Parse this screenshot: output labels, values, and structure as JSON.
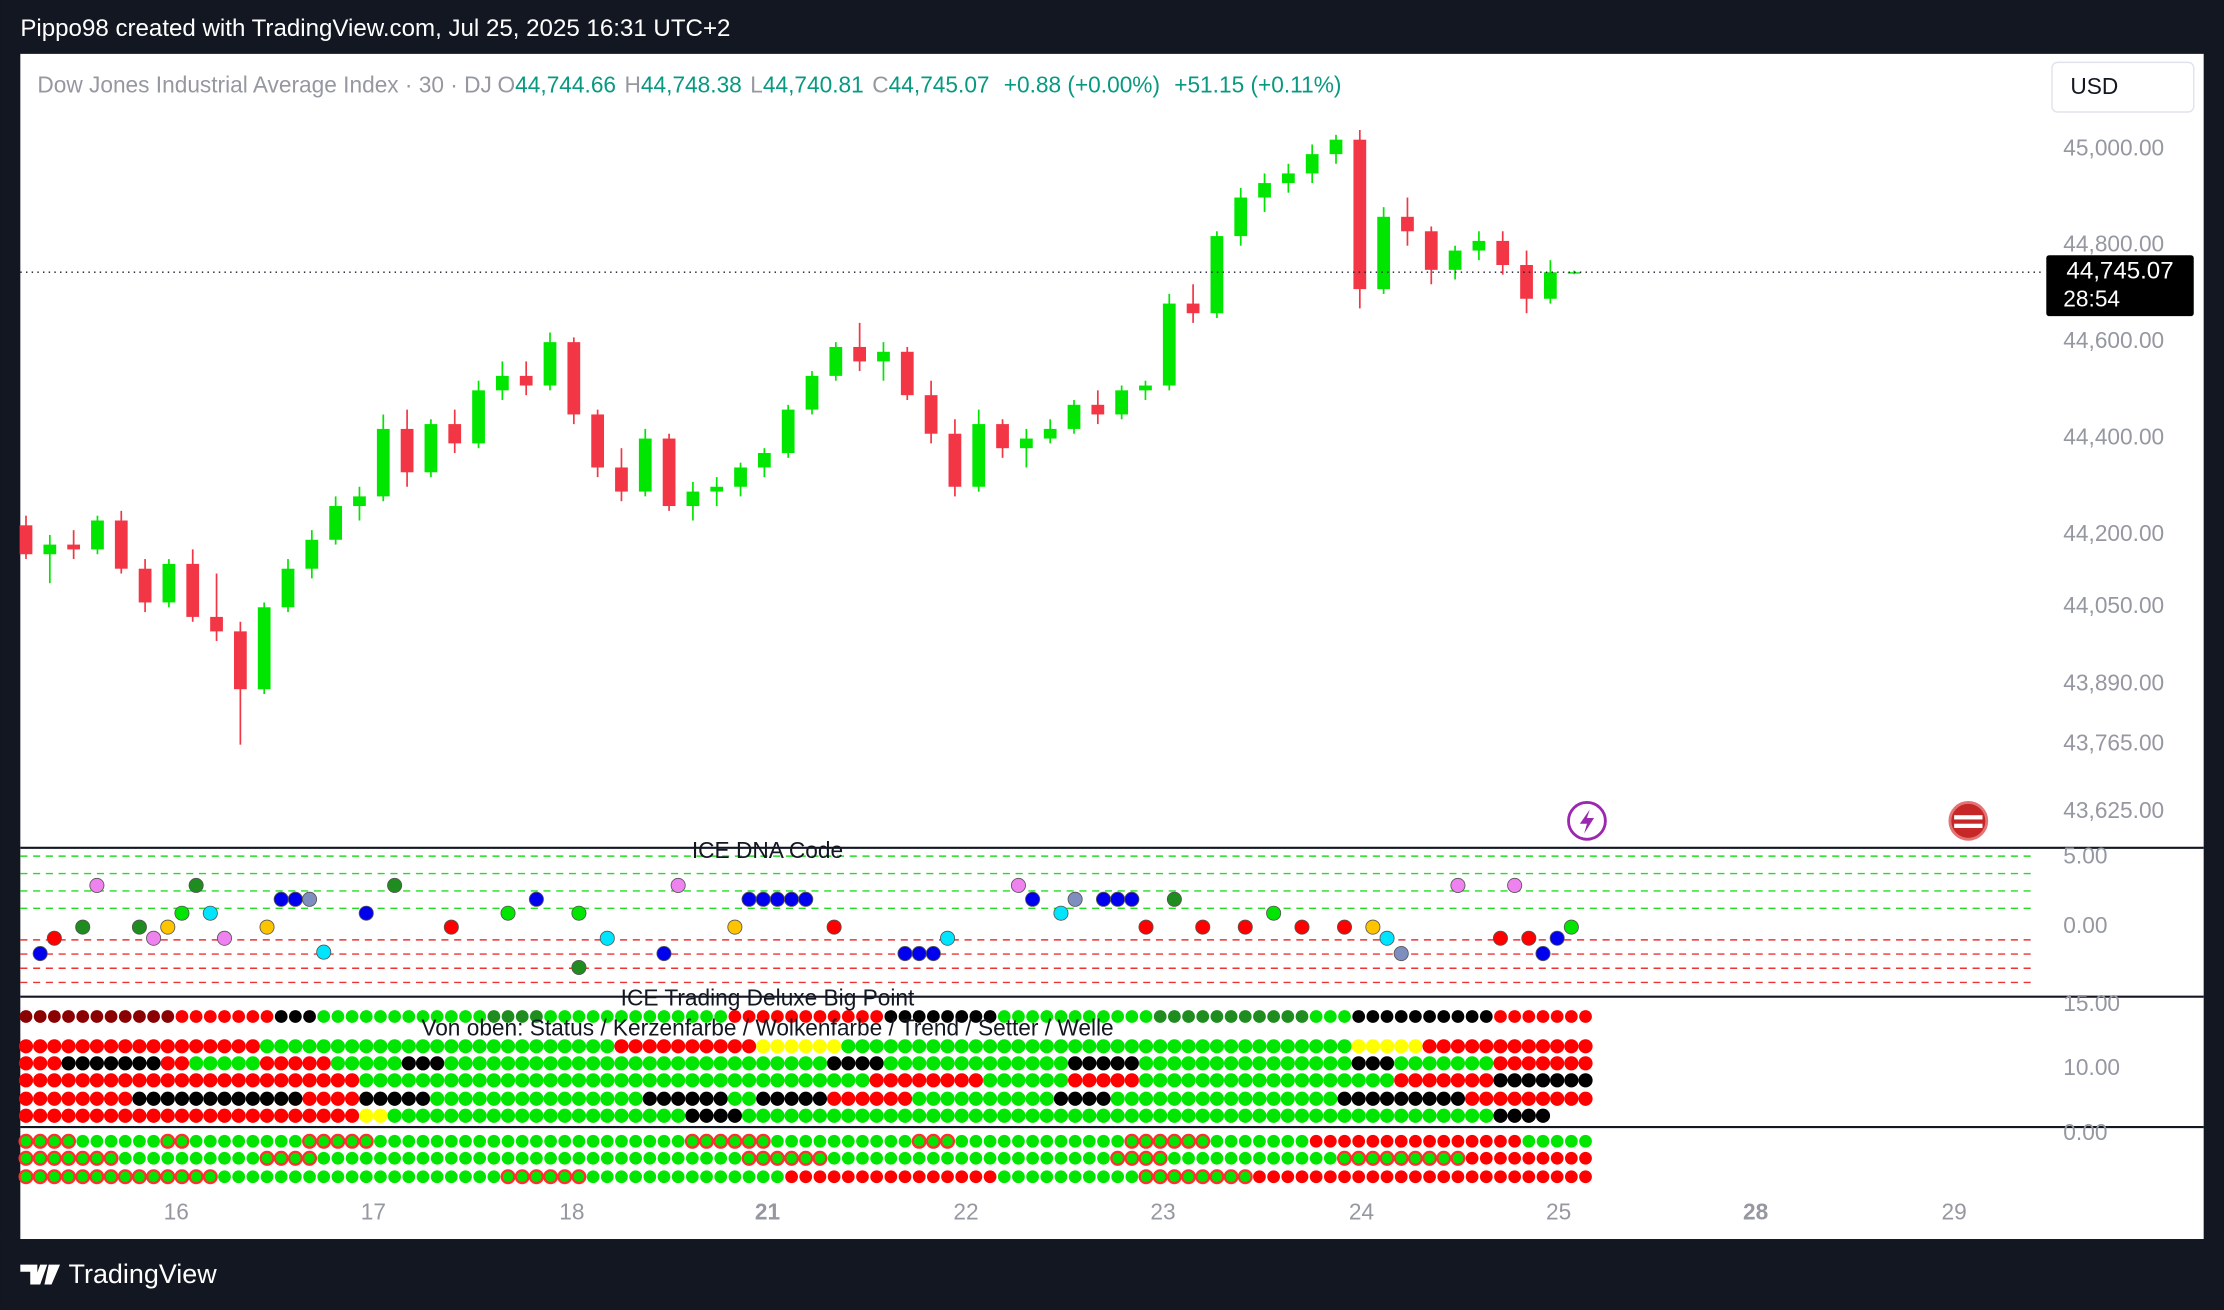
{
  "watermark": "Pippo98 created with TradingView.com, Jul 25, 2025 16:31 UTC+2",
  "footer_brand": "TradingView",
  "header": {
    "symbol": "Dow Jones Industrial Average Index · 30 · DJ",
    "ohlc": [
      {
        "key": "O",
        "value": "44,744.66"
      },
      {
        "key": "H",
        "value": "44,748.38"
      },
      {
        "key": "L",
        "value": "44,740.81"
      },
      {
        "key": "C",
        "value": "44,745.07"
      }
    ],
    "change": "+0.88 (+0.00%)",
    "change_ext": "+51.15 (+0.11%)",
    "currency": "USD"
  },
  "chart_data": {
    "type": "candlestick",
    "up_color": "#00e600",
    "down_color": "#f23645",
    "ylim": [
      43551,
      45198
    ],
    "yticks": [
      {
        "value": 45000,
        "label": "45,000.00"
      },
      {
        "value": 44800,
        "label": "44,800.00"
      },
      {
        "value": 44600,
        "label": "44,600.00"
      },
      {
        "value": 44400,
        "label": "44,400.00"
      },
      {
        "value": 44200,
        "label": "44,200.00"
      },
      {
        "value": 44050,
        "label": "44,050.00"
      },
      {
        "value": 43890,
        "label": "43,890.00"
      },
      {
        "value": 43765,
        "label": "43,765.00"
      },
      {
        "value": 43625,
        "label": "43,625.00"
      }
    ],
    "x_labels": [
      "16",
      "17",
      "18",
      "21",
      "22",
      "23",
      "24",
      "25",
      "28",
      "29"
    ],
    "last_price": 44745.07,
    "last_price_label": "44,745.07",
    "countdown": "28:54",
    "candles": [
      [
        44220,
        44240,
        44150,
        44160
      ],
      [
        44160,
        44200,
        44100,
        44180
      ],
      [
        44180,
        44210,
        44150,
        44170
      ],
      [
        44170,
        44240,
        44160,
        44230
      ],
      [
        44230,
        44250,
        44120,
        44130
      ],
      [
        44130,
        44150,
        44040,
        44060
      ],
      [
        44060,
        44150,
        44050,
        44140
      ],
      [
        44140,
        44170,
        44020,
        44030
      ],
      [
        44030,
        44120,
        43980,
        44000
      ],
      [
        44000,
        44020,
        43765,
        43880
      ],
      [
        43880,
        44060,
        43870,
        44050
      ],
      [
        44050,
        44150,
        44040,
        44130
      ],
      [
        44130,
        44210,
        44110,
        44190
      ],
      [
        44190,
        44280,
        44180,
        44260
      ],
      [
        44260,
        44300,
        44230,
        44280
      ],
      [
        44280,
        44450,
        44270,
        44420
      ],
      [
        44420,
        44460,
        44300,
        44330
      ],
      [
        44330,
        44440,
        44320,
        44430
      ],
      [
        44430,
        44460,
        44370,
        44390
      ],
      [
        44390,
        44520,
        44380,
        44500
      ],
      [
        44500,
        44560,
        44480,
        44530
      ],
      [
        44530,
        44560,
        44490,
        44510
      ],
      [
        44510,
        44620,
        44500,
        44600
      ],
      [
        44600,
        44610,
        44430,
        44450
      ],
      [
        44450,
        44460,
        44320,
        44340
      ],
      [
        44340,
        44380,
        44270,
        44290
      ],
      [
        44290,
        44420,
        44280,
        44400
      ],
      [
        44400,
        44410,
        44250,
        44260
      ],
      [
        44260,
        44310,
        44230,
        44290
      ],
      [
        44290,
        44320,
        44260,
        44300
      ],
      [
        44300,
        44350,
        44280,
        44340
      ],
      [
        44340,
        44380,
        44320,
        44370
      ],
      [
        44370,
        44470,
        44360,
        44460
      ],
      [
        44460,
        44540,
        44450,
        44530
      ],
      [
        44530,
        44600,
        44520,
        44590
      ],
      [
        44590,
        44640,
        44540,
        44560
      ],
      [
        44560,
        44600,
        44520,
        44580
      ],
      [
        44580,
        44590,
        44480,
        44490
      ],
      [
        44490,
        44520,
        44390,
        44410
      ],
      [
        44410,
        44440,
        44280,
        44300
      ],
      [
        44300,
        44460,
        44290,
        44430
      ],
      [
        44430,
        44440,
        44360,
        44380
      ],
      [
        44380,
        44420,
        44340,
        44400
      ],
      [
        44400,
        44440,
        44390,
        44420
      ],
      [
        44420,
        44480,
        44410,
        44470
      ],
      [
        44470,
        44500,
        44430,
        44450
      ],
      [
        44450,
        44510,
        44440,
        44500
      ],
      [
        44500,
        44520,
        44480,
        44510
      ],
      [
        44510,
        44700,
        44500,
        44680
      ],
      [
        44680,
        44720,
        44640,
        44660
      ],
      [
        44660,
        44830,
        44650,
        44820
      ],
      [
        44820,
        44920,
        44800,
        44900
      ],
      [
        44900,
        44950,
        44870,
        44930
      ],
      [
        44930,
        44970,
        44910,
        44950
      ],
      [
        44950,
        45010,
        44930,
        44990
      ],
      [
        44990,
        45030,
        44970,
        45020
      ],
      [
        45020,
        45040,
        44670,
        44710
      ],
      [
        44710,
        44880,
        44700,
        44860
      ],
      [
        44860,
        44900,
        44800,
        44830
      ],
      [
        44830,
        44840,
        44720,
        44750
      ],
      [
        44750,
        44800,
        44730,
        44790
      ],
      [
        44790,
        44830,
        44770,
        44810
      ],
      [
        44810,
        44830,
        44740,
        44760
      ],
      [
        44760,
        44790,
        44660,
        44690
      ],
      [
        44690,
        44770,
        44680,
        44745
      ],
      [
        44744.66,
        44748.38,
        44740.81,
        44745.07
      ]
    ]
  },
  "indicators": {
    "palette": {
      "M": "#8b0000",
      "R": "#ff0000",
      "K": "#000000",
      "G": "#00e600",
      "D": "#1e8c1e",
      "Y": "#ffff00",
      "H": "#00e600",
      "B": "#0000ee",
      "C": "#00e5ff",
      "P": "#ee82ee",
      "O": "#ffc400",
      "S": "#7e8fbf"
    },
    "ringed": "H",
    "ring_color": "#ff3030",
    "dna": {
      "title": "ICE DNA Code",
      "ylim": [
        -5,
        5.7
      ],
      "yticks": [
        {
          "value": 5,
          "label": "5.00"
        },
        {
          "value": 0,
          "label": "0.00"
        }
      ],
      "dots": [
        [
          1,
          -1.9,
          "B"
        ],
        [
          2,
          -0.8,
          "R"
        ],
        [
          4,
          0,
          "D"
        ],
        [
          5,
          3,
          "P"
        ],
        [
          8,
          0,
          "D"
        ],
        [
          9,
          -0.8,
          "P"
        ],
        [
          10,
          0,
          "O"
        ],
        [
          11,
          1,
          "G"
        ],
        [
          12,
          3,
          "D"
        ],
        [
          13,
          1,
          "C"
        ],
        [
          14,
          -0.8,
          "P"
        ],
        [
          17,
          0,
          "O"
        ],
        [
          18,
          2,
          "B"
        ],
        [
          19,
          2,
          "B"
        ],
        [
          20,
          2,
          "S"
        ],
        [
          21,
          -1.8,
          "C"
        ],
        [
          24,
          1,
          "B"
        ],
        [
          26,
          3,
          "D"
        ],
        [
          30,
          0,
          "R"
        ],
        [
          34,
          1,
          "G"
        ],
        [
          36,
          2,
          "B"
        ],
        [
          39,
          1,
          "G"
        ],
        [
          39,
          -2.9,
          "D"
        ],
        [
          41,
          -0.8,
          "C"
        ],
        [
          45,
          -1.9,
          "B"
        ],
        [
          46,
          3,
          "P"
        ],
        [
          50,
          0,
          "O"
        ],
        [
          51,
          2,
          "B"
        ],
        [
          52,
          2,
          "B"
        ],
        [
          53,
          2,
          "B"
        ],
        [
          54,
          2,
          "B"
        ],
        [
          55,
          2,
          "B"
        ],
        [
          57,
          0,
          "R"
        ],
        [
          62,
          -1.9,
          "B"
        ],
        [
          63,
          -1.9,
          "B"
        ],
        [
          64,
          -1.9,
          "B"
        ],
        [
          65,
          -0.8,
          "C"
        ],
        [
          70,
          3,
          "P"
        ],
        [
          71,
          2,
          "B"
        ],
        [
          73,
          1,
          "C"
        ],
        [
          74,
          2,
          "S"
        ],
        [
          76,
          2,
          "B"
        ],
        [
          77,
          2,
          "B"
        ],
        [
          78,
          2,
          "B"
        ],
        [
          79,
          0,
          "R"
        ],
        [
          81,
          2,
          "D"
        ],
        [
          83,
          0,
          "R"
        ],
        [
          86,
          0,
          "R"
        ],
        [
          88,
          1,
          "G"
        ],
        [
          90,
          0,
          "R"
        ],
        [
          93,
          0,
          "R"
        ],
        [
          95,
          0,
          "O"
        ],
        [
          96,
          -0.8,
          "C"
        ],
        [
          97,
          -1.9,
          "S"
        ],
        [
          101,
          3,
          "P"
        ],
        [
          104,
          -0.8,
          "R"
        ],
        [
          105,
          3,
          "P"
        ],
        [
          106,
          -0.8,
          "R"
        ],
        [
          107,
          -1.9,
          "B"
        ],
        [
          108,
          -0.8,
          "B"
        ],
        [
          109,
          0,
          "G"
        ]
      ]
    },
    "big_point": {
      "title": "ICE Trading Deluxe Big Point",
      "subtitle": "Von oben: Status / Kerzenfarbe / Wolkenfarbe / Trend / Setter / Welle",
      "ylim": [
        5.44,
        15.67
      ],
      "yticks": [
        {
          "value": 15,
          "label": "15.00"
        },
        {
          "value": 10,
          "label": "10.00"
        }
      ],
      "rows": [
        "MMMMMMMMMMMRRRRRRRKKKGGGGGGGGGGGGDDDDGGGGGGGGGGGGGRRRRRRRRRRRKKKKKKKKGGGGGGGGGGGDDDDDDDDDDDGGGKKKKKKKKKKRRRRRRR",
        "RRRRRRRRRRRRRRRRRGGGGGGGGGGGGGGGGGGGGGGGGGRRRRRRRRRRYYYYYYGGGGGGGGGGGGGGGGGGGGGGGGGGGGGGGGGGGGYYYYYRRRRRRRRRRRR",
        "RRRKKKKKKKRRGGGGGRRRRRGGGGGKKKGGGGGGGGGGGGGGGGGGGGGGGGGGGKKKKGGGGGGGGGGGGGKKKKKGGGGGGGGGGGGGGGKKKGGGGGGGRRRRRRR",
        "RRRRRRRRRRRRRRRRRRRRRRRRGGGGGGGGGGGGGGGGGGGGGGGGGGGGGGGGGGGGRRRRRRRRGGGGGGRRRRRGGGGGGGGGGGGGGGGGGRRRRRRRKKKKKKK",
        "RRRRRRRRKKKKKKKKKKKKRRRRKKKKKGGGGGGGGGGGGGGGKKKKKKGGKKKKKRRRRRRGGGGGGGGGGKKKKGGGGGGGGGGGGGGGGKKKKKKKKKRRRRRRRRR",
        "RRRRRRRRRRRRRRRRRRRRRRRRYYGGGGGGGGGGGGGGGGGGGGGKKKKGGGGGGGGGGGGGGGGGGGGGGGGGGGGGGGGGGGGGGGGGGGGGGGGGGGGGKKKK"
      ]
    },
    "momentum": {
      "ylim": [
        -7.4,
        0.5
      ],
      "yticks": [
        {
          "value": 0,
          "label": "0.00"
        }
      ],
      "rows": [
        "HHHHGGGGGGHHGGGGGGGGHHHHHGGGGGGGGGGGGGGGGGGGGGGHHHHHHGGGGGGGGGGHHHGGGGGGGGGGGGHHHHHHGGGGGGGRRRRRRRRRRRRRRRGGGGG",
        "HHHHHHHGGGGGGGGGGHHHHGGGGGGGGGGGGGGGGGGGGGGGGGGGGGGHHHHHHGGGGGGGGGGGGGGGGGGGGHHHHGGGGGGGGGGGGHHHHHHHHHRRRRRRRRR",
        "HHHHHHHHHHHHHHGGGGGGGGGGGGGGGGGGGGHHHHHHGGGGGGGGGGGGGGRRRRRRRRRRRRRRRGGGGGGGGGGHHHHHHHHRRRRRRRRRRRRRRRRRRRRRRRR"
      ]
    }
  }
}
